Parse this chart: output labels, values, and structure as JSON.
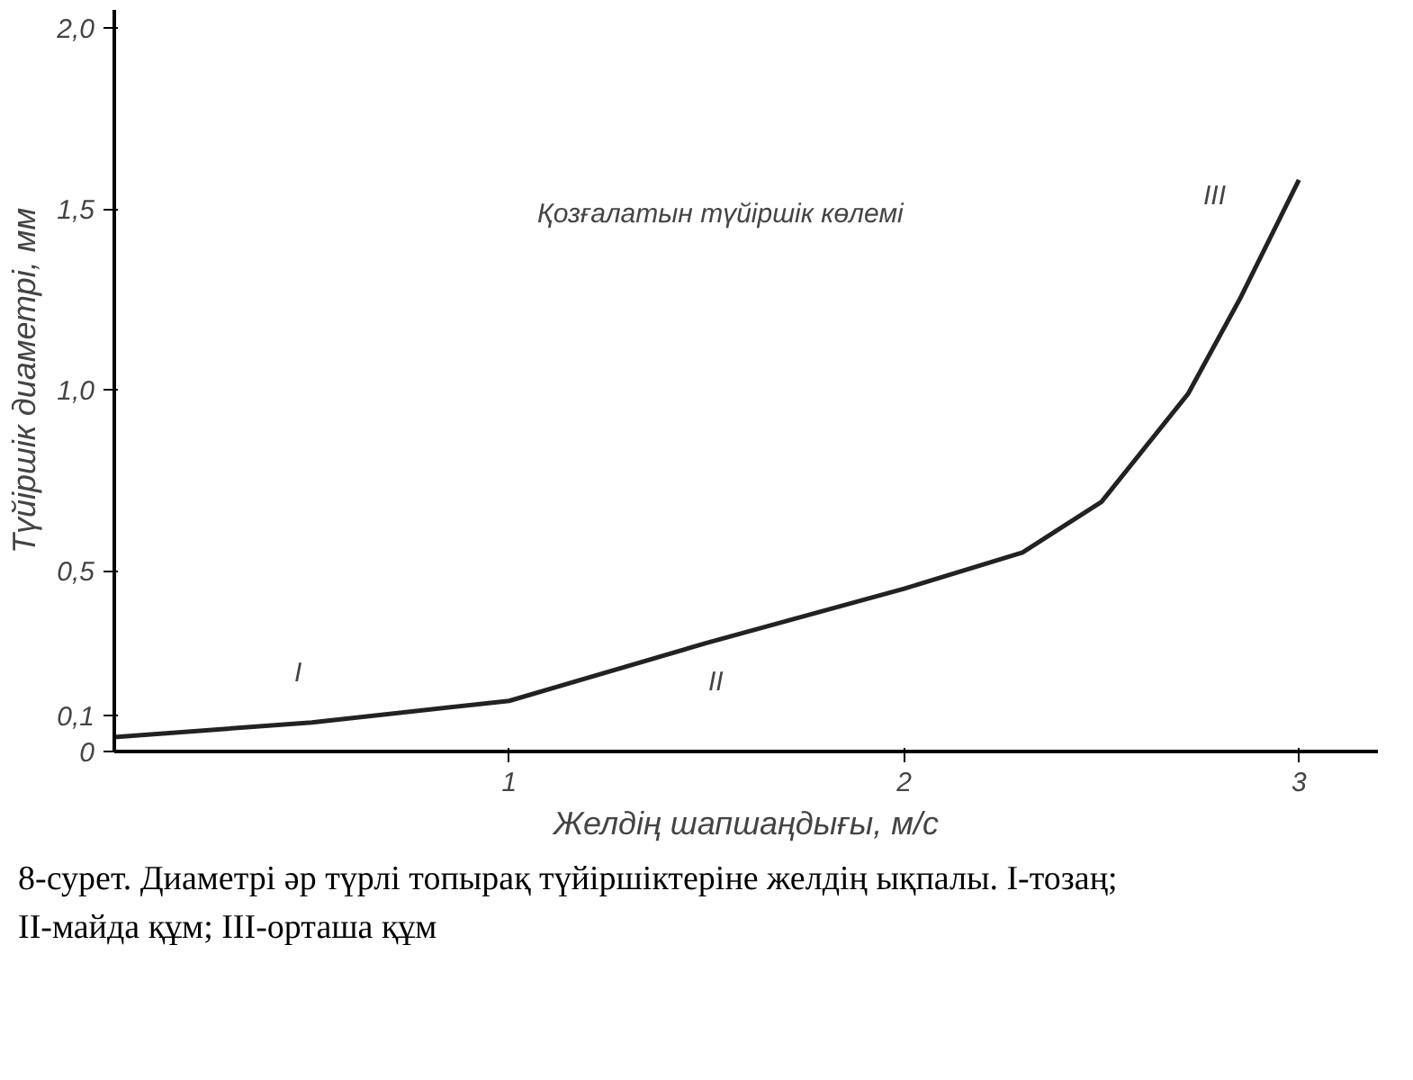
{
  "chart_data": {
    "type": "line",
    "xlabel": "Желдің шапшаңдығы, м/с",
    "ylabel": "Түйіршік диаметрі, мм",
    "x": [
      0,
      0.5,
      1.0,
      1.5,
      2.0,
      2.3,
      2.5,
      2.72,
      2.85,
      3.0
    ],
    "values": [
      0.04,
      0.08,
      0.14,
      0.3,
      0.45,
      0.55,
      0.69,
      0.99,
      1.25,
      1.58
    ],
    "color": "#222222",
    "marker": "none",
    "line_style": "solid",
    "grid": false,
    "xlim": [
      0,
      3.2
    ],
    "ylim": [
      0,
      2.05
    ],
    "xticks": [
      1,
      2,
      3
    ],
    "yticks": [
      0,
      {
        "value": 0.1,
        "label": "0,1"
      },
      {
        "value": 0.5,
        "label": "0,5"
      },
      {
        "value": 1.0,
        "label": "1,0"
      },
      {
        "value": 1.5,
        "label": "1,5"
      },
      {
        "value": 2.0,
        "label": "2,0"
      }
    ],
    "annotations": [
      "Қозғалатын түйіршік көлемі",
      "I",
      "II",
      "III",
      "8-сурет. Диаметрі әр түрлі топырақ түйіршіктеріне желдің ықпалы. I-тозаң; II-майда құм; III-орташа құм"
    ]
  }
}
